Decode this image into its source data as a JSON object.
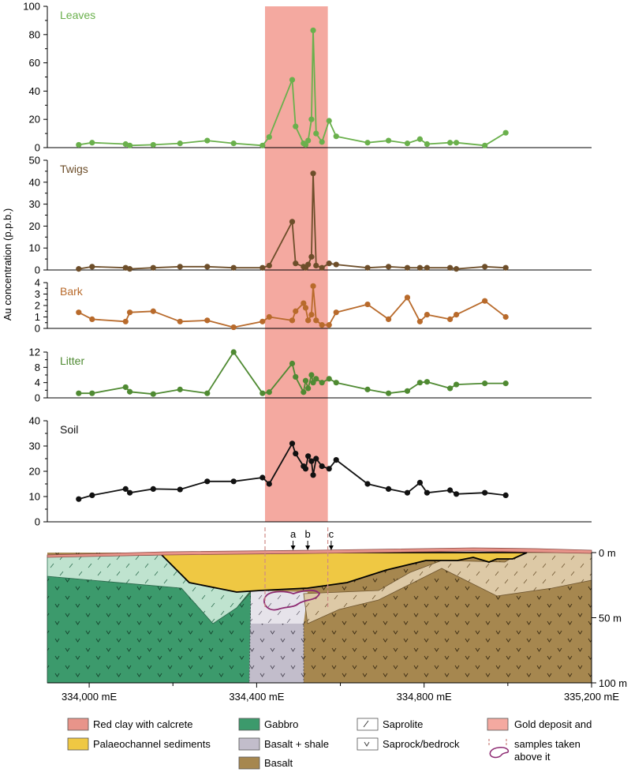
{
  "chart_data": {
    "type": "line",
    "ylabel": "Au concentration (p.p.b.)",
    "gold_zone_x": [
      334420,
      334570
    ],
    "colors": {
      "leaves": "#6ab04c",
      "twigs": "#6d4e2a",
      "bark": "#b86a2b",
      "litter": "#4f8a32",
      "soil": "#111111",
      "gold": "#f4a9a0"
    },
    "panels": [
      {
        "key": "leaves",
        "name": "Leaves",
        "ylim": [
          0,
          100
        ],
        "ticks": [
          0,
          20,
          40,
          60,
          80,
          100
        ],
        "x": [
          333975,
          334007,
          334087,
          334097,
          334153,
          334217,
          334282,
          334345,
          334414,
          334430,
          334485,
          334493,
          334512,
          334517,
          334523,
          334531,
          334535,
          334542,
          334556,
          334573,
          334590,
          334665,
          334715,
          334760,
          334790,
          334807,
          334862,
          334877,
          334945,
          334995
        ],
        "y": [
          2,
          3.5,
          2.5,
          1.5,
          2,
          3,
          5,
          3,
          1.5,
          7.5,
          48,
          15,
          3,
          2,
          5,
          20,
          83,
          10,
          4,
          19,
          8,
          3.5,
          5,
          3,
          6,
          2.5,
          3.5,
          3.5,
          1.5,
          10.5
        ]
      },
      {
        "key": "twigs",
        "name": "Twigs",
        "ylim": [
          0,
          50
        ],
        "ticks": [
          0,
          10,
          20,
          30,
          40,
          50
        ],
        "x": [
          333975,
          334007,
          334087,
          334097,
          334153,
          334217,
          334282,
          334345,
          334414,
          334430,
          334485,
          334493,
          334512,
          334517,
          334523,
          334531,
          334535,
          334542,
          334556,
          334573,
          334590,
          334665,
          334715,
          334760,
          334790,
          334807,
          334862,
          334877,
          334945,
          334995
        ],
        "y": [
          0.5,
          1.5,
          1,
          0.5,
          1,
          1.5,
          1.5,
          1,
          1,
          2,
          22,
          3,
          1.5,
          1,
          2.5,
          6,
          44,
          2,
          1,
          3,
          2.5,
          1,
          1.5,
          1,
          1,
          1,
          1,
          0.5,
          1.5,
          1
        ]
      },
      {
        "key": "bark",
        "name": "Bark",
        "ylim": [
          0,
          4
        ],
        "ticks": [
          0,
          1,
          2,
          3,
          4
        ],
        "x": [
          333975,
          334007,
          334087,
          334097,
          334153,
          334217,
          334282,
          334345,
          334414,
          334430,
          334485,
          334493,
          334512,
          334517,
          334523,
          334531,
          334535,
          334542,
          334556,
          334573,
          334590,
          334665,
          334715,
          334760,
          334790,
          334807,
          334862,
          334877,
          334945,
          334995
        ],
        "y": [
          1.4,
          0.8,
          0.6,
          1.4,
          1.5,
          0.6,
          0.7,
          0.1,
          0.6,
          1,
          0.7,
          1.5,
          2.2,
          1.8,
          0.7,
          1.2,
          3.7,
          0.7,
          0.3,
          0.3,
          1.4,
          2.1,
          0.8,
          2.7,
          0.6,
          1.2,
          0.8,
          1.2,
          2.4,
          1
        ]
      },
      {
        "key": "litter",
        "name": "Litter",
        "ylim": [
          0,
          12
        ],
        "ticks": [
          0,
          4,
          8,
          12
        ],
        "x": [
          333975,
          334007,
          334087,
          334097,
          334153,
          334217,
          334282,
          334345,
          334414,
          334430,
          334485,
          334493,
          334512,
          334517,
          334523,
          334531,
          334535,
          334542,
          334556,
          334573,
          334590,
          334665,
          334715,
          334760,
          334790,
          334807,
          334862,
          334877,
          334945,
          334995
        ],
        "y": [
          1.2,
          1.2,
          2.8,
          1.6,
          1,
          2.2,
          1.2,
          12,
          1.2,
          1.5,
          9,
          5.5,
          1.5,
          4.5,
          2.5,
          6,
          4,
          5,
          4,
          5,
          4,
          2.2,
          1.2,
          1.8,
          4,
          4.2,
          2.5,
          3.5,
          3.8,
          3.8
        ]
      },
      {
        "key": "soil",
        "name": "Soil",
        "ylim": [
          0,
          40
        ],
        "ticks": [
          0,
          10,
          20,
          30,
          40
        ],
        "x": [
          333975,
          334007,
          334087,
          334097,
          334153,
          334217,
          334282,
          334345,
          334414,
          334430,
          334485,
          334493,
          334512,
          334517,
          334523,
          334531,
          334535,
          334542,
          334556,
          334573,
          334590,
          334665,
          334715,
          334760,
          334790,
          334807,
          334862,
          334877,
          334945,
          334995
        ],
        "y": [
          9,
          10.5,
          13,
          11.5,
          13,
          12.8,
          16,
          16,
          17.5,
          15,
          31,
          27,
          22,
          21,
          26,
          24,
          18.5,
          25,
          22,
          21,
          24.5,
          15,
          13,
          11.5,
          15.5,
          11.5,
          12.5,
          11,
          11.5,
          10.5
        ]
      }
    ],
    "section": {
      "x_ticks": [
        334000,
        334400,
        334800,
        335200
      ],
      "x_tick_labels": [
        "334,000 mE",
        "334,400 mE",
        "334,800 mE",
        "335,200 mE"
      ],
      "depth_ticks": [
        0,
        50,
        100
      ],
      "depth_labels": [
        "0 m",
        "50 m",
        "100 m"
      ],
      "markers": [
        {
          "label": "a",
          "x": 334487
        },
        {
          "label": "b",
          "x": 334522
        },
        {
          "label": "c",
          "x": 334578
        }
      ]
    },
    "legend": [
      {
        "key": "red-clay",
        "label": "Red clay with calcrete",
        "color": "#e8948a"
      },
      {
        "key": "palaeochannel",
        "label": "Palaeochannel sediments",
        "color": "#efc843"
      },
      {
        "key": "gabbro",
        "label": "Gabbro",
        "color": "#3c9a6c"
      },
      {
        "key": "basalt-shale",
        "label": "Basalt + shale",
        "color": "#c2bdcb"
      },
      {
        "key": "basalt",
        "label": "Basalt",
        "color": "#a6874f"
      },
      {
        "key": "saprolite",
        "label": "Saprolite",
        "color": "#ffffff"
      },
      {
        "key": "saprock",
        "label": "Saprock/bedrock",
        "color": "#ffffff"
      },
      {
        "key": "gold-deposit",
        "label": "Gold deposit and",
        "label2": "samples taken",
        "label3": "above it",
        "color": "#f4a9a0"
      }
    ]
  }
}
